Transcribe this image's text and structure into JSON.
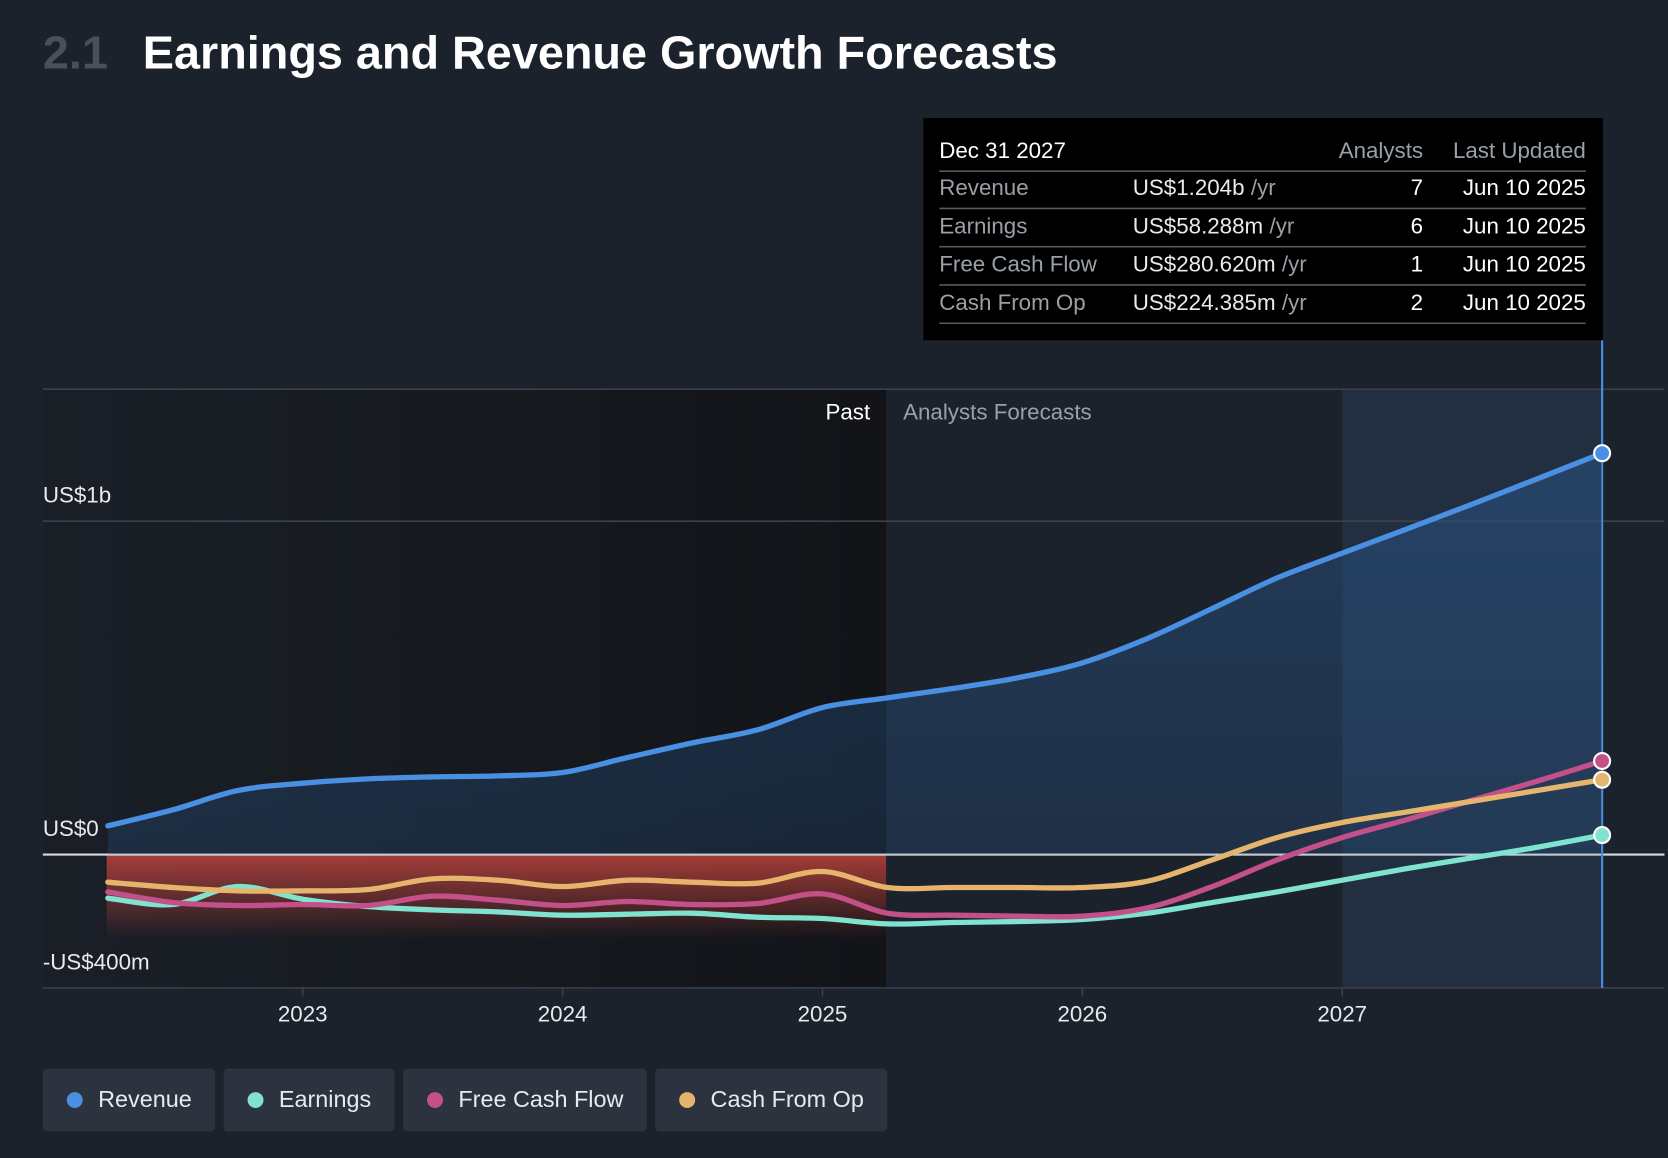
{
  "header": {
    "section": "2.1",
    "title": "Earnings and Revenue Growth Forecasts"
  },
  "tooltip": {
    "date": "Dec 31 2027",
    "columns": [
      "Analysts",
      "Last Updated"
    ],
    "rows": [
      {
        "label": "Revenue",
        "value": "US$1.204b",
        "unit": "/yr",
        "analysts": 7,
        "updated": "Jun 10 2025"
      },
      {
        "label": "Earnings",
        "value": "US$58.288m",
        "unit": "/yr",
        "analysts": 6,
        "updated": "Jun 10 2025"
      },
      {
        "label": "Free Cash Flow",
        "value": "US$280.620m",
        "unit": "/yr",
        "analysts": 1,
        "updated": "Jun 10 2025"
      },
      {
        "label": "Cash From Op",
        "value": "US$224.385m",
        "unit": "/yr",
        "analysts": 2,
        "updated": "Jun 10 2025"
      }
    ]
  },
  "chart_data": {
    "type": "line",
    "annotations": [
      "Past",
      "Analysts Forecasts"
    ],
    "x": [
      2022.25,
      2022.5,
      2022.75,
      2023,
      2023.25,
      2023.5,
      2023.75,
      2024,
      2024.25,
      2024.5,
      2024.75,
      2025,
      2025.25,
      2025.5,
      2025.75,
      2026,
      2026.25,
      2026.5,
      2026.75,
      2027,
      2027.25,
      2027.5,
      2027.75,
      2028
    ],
    "xlim": [
      2022,
      2028.24
    ],
    "xticks": [
      2023,
      2024,
      2025,
      2026,
      2027
    ],
    "ylim": [
      -400,
      1396
    ],
    "yticks": [
      {
        "value": -400,
        "label": "-US$400m"
      },
      {
        "value": 0,
        "label": "US$0"
      },
      {
        "value": 1000,
        "label": "US$1b"
      }
    ],
    "grid": true,
    "series": [
      {
        "name": "Revenue",
        "color": "#4a90e2",
        "values": [
          86,
          134,
          192,
          214,
          227,
          233,
          236,
          246,
          291,
          335,
          374,
          441,
          470,
          498,
          530,
          575,
          648,
          738,
          830,
          904,
          977,
          1051,
          1127,
          1204
        ]
      },
      {
        "name": "Earnings",
        "color": "#7fe3cf",
        "values": [
          -131,
          -150,
          -96,
          -134,
          -156,
          -166,
          -172,
          -182,
          -179,
          -176,
          -188,
          -192,
          -208,
          -204,
          -201,
          -195,
          -176,
          -144,
          -112,
          -77,
          -42,
          -10,
          22,
          58.288
        ]
      },
      {
        "name": "Free Cash Flow",
        "color": "#c4508a",
        "values": [
          -112,
          -144,
          -153,
          -150,
          -153,
          -125,
          -137,
          -153,
          -141,
          -150,
          -147,
          -118,
          -176,
          -182,
          -185,
          -185,
          -160,
          -96,
          -16,
          51,
          105,
          163,
          220,
          280.62
        ]
      },
      {
        "name": "Cash From Op",
        "color": "#e5b56d",
        "values": [
          -83,
          -99,
          -109,
          -109,
          -105,
          -73,
          -77,
          -96,
          -77,
          -83,
          -86,
          -51,
          -99,
          -99,
          -99,
          -99,
          -80,
          -16,
          51,
          96,
          128,
          160,
          192,
          224.385
        ]
      }
    ]
  }
}
